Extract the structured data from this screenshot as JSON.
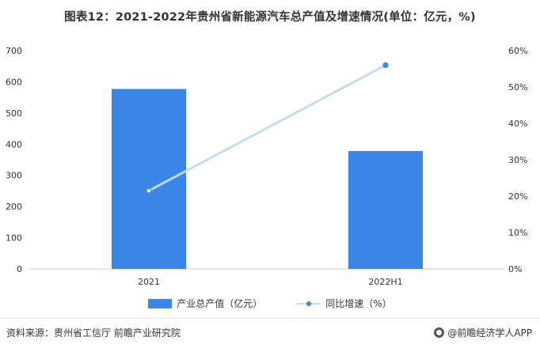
{
  "title": "图表12：2021-2022年贵州省新能源汽车总产值及增速情况(单位：亿元，%)",
  "chart_data": {
    "type": "bar",
    "categories": [
      "2021",
      "2022H1"
    ],
    "series": [
      {
        "name": "产业总产值（亿元）",
        "type": "bar",
        "axis": "left",
        "values": [
          577,
          378
        ],
        "color": "#3a85e8"
      },
      {
        "name": "同比增速（%）",
        "type": "line",
        "axis": "right",
        "values": [
          21.5,
          56
        ],
        "color": "#c3dcf3",
        "marker_color": "#3a85e8"
      }
    ],
    "y_left": {
      "min": 0,
      "max": 700,
      "ticks": [
        "0",
        "100",
        "200",
        "300",
        "400",
        "500",
        "600",
        "700"
      ]
    },
    "y_right": {
      "min": 0,
      "max": 60,
      "ticks": [
        "0%",
        "10%",
        "20%",
        "30%",
        "40%",
        "50%",
        "60%"
      ]
    },
    "legend_position": "bottom",
    "grid": false
  },
  "legend": {
    "bar_label": "产业总产值（亿元）",
    "line_label": "同比增速（%）"
  },
  "footer": {
    "source": "资料来源：贵州省工信厅 前瞻产业研究院",
    "brand": "@前瞻经济学人APP"
  }
}
